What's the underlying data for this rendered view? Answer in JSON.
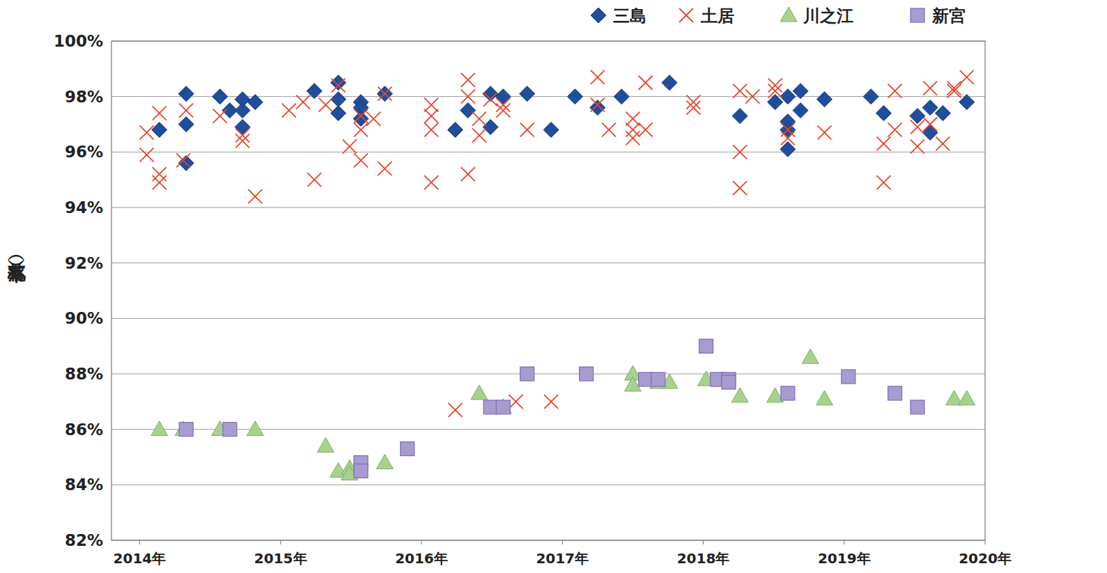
{
  "chart_data": {
    "type": "scatter",
    "y_label": "（落札率）",
    "grid": true,
    "legend": "top-right",
    "xlim": [
      2013.8,
      2020.0
    ],
    "xticks": [
      {
        "value": 2014,
        "label": "2014年"
      },
      {
        "value": 2015,
        "label": "2015年"
      },
      {
        "value": 2016,
        "label": "2016年"
      },
      {
        "value": 2017,
        "label": "2017年"
      },
      {
        "value": 2018,
        "label": "2018年"
      },
      {
        "value": 2019,
        "label": "2019年"
      },
      {
        "value": 2020,
        "label": "2020年"
      }
    ],
    "ylim": [
      82,
      100
    ],
    "yticks": [
      {
        "value": 82,
        "label": "82%"
      },
      {
        "value": 84,
        "label": "84%"
      },
      {
        "value": 86,
        "label": "86%"
      },
      {
        "value": 88,
        "label": "88%"
      },
      {
        "value": 90,
        "label": "90%"
      },
      {
        "value": 92,
        "label": "92%"
      },
      {
        "value": 94,
        "label": "94%"
      },
      {
        "value": 96,
        "label": "96%"
      },
      {
        "value": 98,
        "label": "98%"
      },
      {
        "value": 100,
        "label": "100%"
      }
    ],
    "series": [
      {
        "name": "三島",
        "color": "#1f4e9c",
        "marker": "diamond",
        "x": [
          2014.14,
          2014.33,
          2014.33,
          2014.33,
          2014.57,
          2014.64,
          2014.73,
          2014.73,
          2014.73,
          2014.82,
          2015.24,
          2015.41,
          2015.41,
          2015.41,
          2015.57,
          2015.57,
          2015.57,
          2015.74,
          2016.24,
          2016.33,
          2016.49,
          2016.49,
          2016.58,
          2016.75,
          2016.92,
          2017.09,
          2017.25,
          2017.42,
          2017.76,
          2018.26,
          2018.51,
          2018.6,
          2018.6,
          2018.6,
          2018.6,
          2018.69,
          2018.69,
          2018.86,
          2019.19,
          2019.28,
          2019.52,
          2019.61,
          2019.61,
          2019.7,
          2019.87
        ],
        "values": [
          96.8,
          98.1,
          97.0,
          95.6,
          98.0,
          97.5,
          97.9,
          97.5,
          96.9,
          97.8,
          98.2,
          98.5,
          97.9,
          97.4,
          97.8,
          97.6,
          97.2,
          98.1,
          96.8,
          97.5,
          98.1,
          96.9,
          98.0,
          98.1,
          96.8,
          98.0,
          97.6,
          98.0,
          98.5,
          97.3,
          97.8,
          98.0,
          97.1,
          96.8,
          96.1,
          98.2,
          97.5,
          97.9,
          98.0,
          97.4,
          97.3,
          97.6,
          96.7,
          97.4,
          97.8
        ]
      },
      {
        "name": "土居",
        "color": "#e8452c",
        "marker": "x",
        "x": [
          2014.05,
          2014.05,
          2014.14,
          2014.14,
          2014.14,
          2014.31,
          2014.33,
          2014.57,
          2014.73,
          2014.73,
          2014.82,
          2015.06,
          2015.16,
          2015.24,
          2015.32,
          2015.41,
          2015.49,
          2015.57,
          2015.57,
          2015.57,
          2015.66,
          2015.74,
          2015.74,
          2016.07,
          2016.07,
          2016.07,
          2016.07,
          2016.24,
          2016.33,
          2016.33,
          2016.33,
          2016.41,
          2016.41,
          2016.49,
          2016.58,
          2016.58,
          2016.67,
          2016.75,
          2016.92,
          2017.25,
          2017.25,
          2017.33,
          2017.5,
          2017.5,
          2017.5,
          2017.59,
          2017.59,
          2017.93,
          2017.93,
          2018.26,
          2018.26,
          2018.26,
          2018.35,
          2018.51,
          2018.51,
          2018.6,
          2018.6,
          2018.86,
          2019.28,
          2019.28,
          2019.36,
          2019.36,
          2019.52,
          2019.52,
          2019.61,
          2019.61,
          2019.7,
          2019.78,
          2019.78,
          2019.87
        ],
        "values": [
          96.7,
          95.9,
          97.4,
          95.2,
          94.9,
          95.7,
          97.5,
          97.3,
          96.6,
          96.4,
          94.4,
          97.5,
          97.8,
          95.0,
          97.7,
          98.4,
          96.2,
          97.3,
          96.8,
          95.7,
          97.2,
          98.1,
          95.4,
          97.7,
          97.3,
          96.8,
          94.9,
          86.7,
          98.6,
          98.0,
          95.2,
          97.2,
          96.6,
          97.9,
          97.7,
          97.5,
          87.0,
          96.8,
          87.0,
          98.7,
          97.7,
          96.8,
          97.2,
          96.8,
          96.5,
          98.5,
          96.8,
          97.8,
          97.6,
          98.2,
          96.0,
          94.7,
          98.0,
          98.4,
          98.2,
          96.8,
          96.5,
          96.7,
          96.3,
          94.9,
          98.2,
          96.8,
          96.9,
          96.2,
          97.0,
          98.3,
          96.3,
          98.3,
          98.2,
          98.7
        ]
      },
      {
        "name": "川之江",
        "color": "#a9d18e",
        "marker": "triangle",
        "x": [
          2014.14,
          2014.31,
          2014.57,
          2014.82,
          2015.32,
          2015.41,
          2015.49,
          2015.49,
          2015.74,
          2016.41,
          2016.58,
          2017.5,
          2017.5,
          2017.68,
          2017.76,
          2018.02,
          2018.26,
          2018.51,
          2018.76,
          2018.86,
          2019.78,
          2019.87
        ],
        "values": [
          86.0,
          86.0,
          86.0,
          86.0,
          85.4,
          84.5,
          84.6,
          84.4,
          84.8,
          87.3,
          86.8,
          88.0,
          87.6,
          87.7,
          87.7,
          87.8,
          87.2,
          87.2,
          88.6,
          87.1,
          87.1,
          87.1
        ]
      },
      {
        "name": "新宮",
        "color": "#a79bd0",
        "marker": "square",
        "x": [
          2014.33,
          2014.64,
          2015.57,
          2015.57,
          2015.9,
          2016.49,
          2016.58,
          2016.75,
          2017.17,
          2017.59,
          2017.68,
          2018.02,
          2018.1,
          2018.18,
          2018.18,
          2018.6,
          2019.03,
          2019.36,
          2019.52
        ],
        "values": [
          86.0,
          86.0,
          84.8,
          84.5,
          85.3,
          86.8,
          86.8,
          88.0,
          88.0,
          87.8,
          87.8,
          89.0,
          87.8,
          87.8,
          87.7,
          87.3,
          87.9,
          87.3,
          86.8
        ]
      }
    ]
  }
}
